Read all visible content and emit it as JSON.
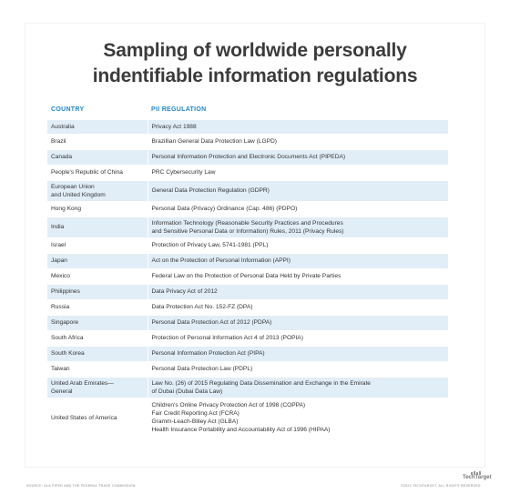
{
  "title": {
    "line1": "Sampling of worldwide personally",
    "line2": "indentifiable information regulations"
  },
  "table": {
    "headers": [
      "COUNTRY",
      "PII REGULATION"
    ],
    "rows": [
      {
        "country": [
          "Australia"
        ],
        "regulation": [
          "Privacy Act 1988"
        ]
      },
      {
        "country": [
          "Brazil"
        ],
        "regulation": [
          "Brazillian General Data Protection Law (LGPD)"
        ]
      },
      {
        "country": [
          "Canada"
        ],
        "regulation": [
          "Personal Information Protection and Electronic Documents Act (PIPEDA)"
        ]
      },
      {
        "country": [
          "People's Republic of China"
        ],
        "regulation": [
          "PRC Cybersecurity Law"
        ]
      },
      {
        "country": [
          "European Union",
          "and United Kingdom"
        ],
        "regulation": [
          "General Data Protection Regulation (GDPR)"
        ]
      },
      {
        "country": [
          "Hong Kong"
        ],
        "regulation": [
          "Personal Data (Privacy) Ordinance (Cap. 486) (PDPO)"
        ]
      },
      {
        "country": [
          "India"
        ],
        "regulation": [
          "Information Technology (Reasonable Security Practices and Procedures",
          "and Sensitive Personal Data or Information) Rules, 2011 (Privacy Rules)"
        ]
      },
      {
        "country": [
          "Israel"
        ],
        "regulation": [
          "Protection of Privacy Law, 5741-1981 (PPL)"
        ]
      },
      {
        "country": [
          "Japan"
        ],
        "regulation": [
          "Act on the Protection of Personal Information (APPI)"
        ]
      },
      {
        "country": [
          "Mexico"
        ],
        "regulation": [
          "Federal Law on the Protection of Personal Data Held by Private Parties"
        ]
      },
      {
        "country": [
          "Philippines"
        ],
        "regulation": [
          "Data Privacy Act of 2012"
        ]
      },
      {
        "country": [
          "Russia"
        ],
        "regulation": [
          "Data Protection Act No. 152-FZ (DPA)"
        ]
      },
      {
        "country": [
          "Singapore"
        ],
        "regulation": [
          "Personal Data Protection Act of 2012 (PDPA)"
        ]
      },
      {
        "country": [
          "South Africa"
        ],
        "regulation": [
          "Protection of Personal Information Act 4 of 2013 (POPIA)"
        ]
      },
      {
        "country": [
          "South Korea"
        ],
        "regulation": [
          "Personal Information Protection Act (PIPA)"
        ]
      },
      {
        "country": [
          "Taiwan"
        ],
        "regulation": [
          "Personal Data Protection Law (PDPL)"
        ]
      },
      {
        "country": [
          "United Arab Emirates—",
          "General"
        ],
        "regulation": [
          "Law No. (26) of 2015 Regulating Data Dissemination and Exchange in the Emirate",
          "of Dubai (Dubai Data Law)"
        ]
      },
      {
        "country": [
          "United States of America"
        ],
        "regulation": [
          "Children's Online Privacy Protection Act of 1998 (COPPA)",
          "Fair Credit Reporting Act (FCRA)",
          "Gramm-Leach-Bliley Act (GLBA)",
          "Health Insurance Portability and Accountability Act of 1996 (HIPAA)"
        ]
      }
    ]
  },
  "footer": {
    "source": "SOURCE: DLA PIPER AND THE FEDERAL TRADE COMMISSION",
    "rights": "©2022 TECHTARGET. ALL RIGHTS RESERVED",
    "logo": "TechTarget"
  },
  "colors": {
    "header_text": "#1f86c8",
    "row_stripe": "#e1eef8",
    "title_text": "#3b3b3b"
  }
}
